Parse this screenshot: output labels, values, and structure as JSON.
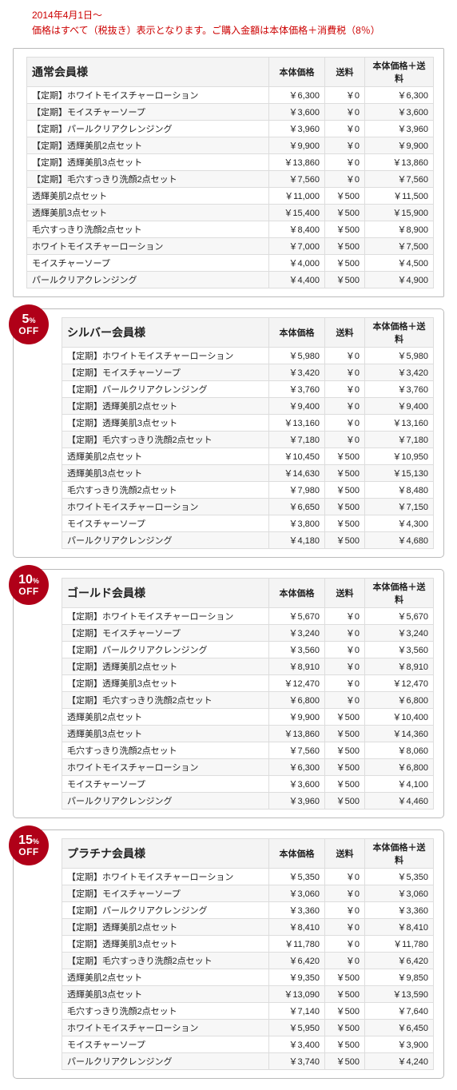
{
  "notice_line1": "2014年4月1日～",
  "notice_line2": "価格はすべて（税抜き）表示となります。ご購入金額は本体価格＋消費税（8％）",
  "headers": {
    "price": "本体価格",
    "shipping": "送料",
    "total": "本体価格＋送料"
  },
  "badge_off": "OFF",
  "tiers": [
    {
      "id": "normal",
      "title": "通常会員様",
      "badge": null,
      "rows": [
        {
          "name": "【定期】ホワイトモイスチャーローション",
          "price": "￥6,300",
          "ship": "￥0",
          "total": "￥6,300"
        },
        {
          "name": "【定期】モイスチャーソープ",
          "price": "￥3,600",
          "ship": "￥0",
          "total": "￥3,600"
        },
        {
          "name": "【定期】パールクリアクレンジング",
          "price": "￥3,960",
          "ship": "￥0",
          "total": "￥3,960"
        },
        {
          "name": "【定期】透輝美肌2点セット",
          "price": "￥9,900",
          "ship": "￥0",
          "total": "￥9,900"
        },
        {
          "name": "【定期】透輝美肌3点セット",
          "price": "￥13,860",
          "ship": "￥0",
          "total": "￥13,860"
        },
        {
          "name": "【定期】毛穴すっきり洗顔2点セット",
          "price": "￥7,560",
          "ship": "￥0",
          "total": "￥7,560"
        },
        {
          "name": "透輝美肌2点セット",
          "price": "￥11,000",
          "ship": "￥500",
          "total": "￥11,500"
        },
        {
          "name": "透輝美肌3点セット",
          "price": "￥15,400",
          "ship": "￥500",
          "total": "￥15,900"
        },
        {
          "name": "毛穴すっきり洗顔2点セット",
          "price": "￥8,400",
          "ship": "￥500",
          "total": "￥8,900"
        },
        {
          "name": "ホワイトモイスチャーローション",
          "price": "￥7,000",
          "ship": "￥500",
          "total": "￥7,500"
        },
        {
          "name": "モイスチャーソープ",
          "price": "￥4,000",
          "ship": "￥500",
          "total": "￥4,500"
        },
        {
          "name": "パールクリアクレンジング",
          "price": "￥4,400",
          "ship": "￥500",
          "total": "￥4,900"
        }
      ]
    },
    {
      "id": "silver",
      "title": "シルバー会員様",
      "badge": "5",
      "rows": [
        {
          "name": "【定期】ホワイトモイスチャーローション",
          "price": "￥5,980",
          "ship": "￥0",
          "total": "￥5,980"
        },
        {
          "name": "【定期】モイスチャーソープ",
          "price": "￥3,420",
          "ship": "￥0",
          "total": "￥3,420"
        },
        {
          "name": "【定期】パールクリアクレンジング",
          "price": "￥3,760",
          "ship": "￥0",
          "total": "￥3,760"
        },
        {
          "name": "【定期】透輝美肌2点セット",
          "price": "￥9,400",
          "ship": "￥0",
          "total": "￥9,400"
        },
        {
          "name": "【定期】透輝美肌3点セット",
          "price": "￥13,160",
          "ship": "￥0",
          "total": "￥13,160"
        },
        {
          "name": "【定期】毛穴すっきり洗顔2点セット",
          "price": "￥7,180",
          "ship": "￥0",
          "total": "￥7,180"
        },
        {
          "name": "透輝美肌2点セット",
          "price": "￥10,450",
          "ship": "￥500",
          "total": "￥10,950"
        },
        {
          "name": "透輝美肌3点セット",
          "price": "￥14,630",
          "ship": "￥500",
          "total": "￥15,130"
        },
        {
          "name": "毛穴すっきり洗顔2点セット",
          "price": "￥7,980",
          "ship": "￥500",
          "total": "￥8,480"
        },
        {
          "name": "ホワイトモイスチャーローション",
          "price": "￥6,650",
          "ship": "￥500",
          "total": "￥7,150"
        },
        {
          "name": "モイスチャーソープ",
          "price": "￥3,800",
          "ship": "￥500",
          "total": "￥4,300"
        },
        {
          "name": "パールクリアクレンジング",
          "price": "￥4,180",
          "ship": "￥500",
          "total": "￥4,680"
        }
      ]
    },
    {
      "id": "gold",
      "title": "ゴールド会員様",
      "badge": "10",
      "rows": [
        {
          "name": "【定期】ホワイトモイスチャーローション",
          "price": "￥5,670",
          "ship": "￥0",
          "total": "￥5,670"
        },
        {
          "name": "【定期】モイスチャーソープ",
          "price": "￥3,240",
          "ship": "￥0",
          "total": "￥3,240"
        },
        {
          "name": "【定期】パールクリアクレンジング",
          "price": "￥3,560",
          "ship": "￥0",
          "total": "￥3,560"
        },
        {
          "name": "【定期】透輝美肌2点セット",
          "price": "￥8,910",
          "ship": "￥0",
          "total": "￥8,910"
        },
        {
          "name": "【定期】透輝美肌3点セット",
          "price": "￥12,470",
          "ship": "￥0",
          "total": "￥12,470"
        },
        {
          "name": "【定期】毛穴すっきり洗顔2点セット",
          "price": "￥6,800",
          "ship": "￥0",
          "total": "￥6,800"
        },
        {
          "name": "透輝美肌2点セット",
          "price": "￥9,900",
          "ship": "￥500",
          "total": "￥10,400"
        },
        {
          "name": "透輝美肌3点セット",
          "price": "￥13,860",
          "ship": "￥500",
          "total": "￥14,360"
        },
        {
          "name": "毛穴すっきり洗顔2点セット",
          "price": "￥7,560",
          "ship": "￥500",
          "total": "￥8,060"
        },
        {
          "name": "ホワイトモイスチャーローション",
          "price": "￥6,300",
          "ship": "￥500",
          "total": "￥6,800"
        },
        {
          "name": "モイスチャーソープ",
          "price": "￥3,600",
          "ship": "￥500",
          "total": "￥4,100"
        },
        {
          "name": "パールクリアクレンジング",
          "price": "￥3,960",
          "ship": "￥500",
          "total": "￥4,460"
        }
      ]
    },
    {
      "id": "platinum",
      "title": "プラチナ会員様",
      "badge": "15",
      "rows": [
        {
          "name": "【定期】ホワイトモイスチャーローション",
          "price": "￥5,350",
          "ship": "￥0",
          "total": "￥5,350"
        },
        {
          "name": "【定期】モイスチャーソープ",
          "price": "￥3,060",
          "ship": "￥0",
          "total": "￥3,060"
        },
        {
          "name": "【定期】パールクリアクレンジング",
          "price": "￥3,360",
          "ship": "￥0",
          "total": "￥3,360"
        },
        {
          "name": "【定期】透輝美肌2点セット",
          "price": "￥8,410",
          "ship": "￥0",
          "total": "￥8,410"
        },
        {
          "name": "【定期】透輝美肌3点セット",
          "price": "￥11,780",
          "ship": "￥0",
          "total": "￥11,780"
        },
        {
          "name": "【定期】毛穴すっきり洗顔2点セット",
          "price": "￥6,420",
          "ship": "￥0",
          "total": "￥6,420"
        },
        {
          "name": "透輝美肌2点セット",
          "price": "￥9,350",
          "ship": "￥500",
          "total": "￥9,850"
        },
        {
          "name": "透輝美肌3点セット",
          "price": "￥13,090",
          "ship": "￥500",
          "total": "￥13,590"
        },
        {
          "name": "毛穴すっきり洗顔2点セット",
          "price": "￥7,140",
          "ship": "￥500",
          "total": "￥7,640"
        },
        {
          "name": "ホワイトモイスチャーローション",
          "price": "￥5,950",
          "ship": "￥500",
          "total": "￥6,450"
        },
        {
          "name": "モイスチャーソープ",
          "price": "￥3,400",
          "ship": "￥500",
          "total": "￥3,900"
        },
        {
          "name": "パールクリアクレンジング",
          "price": "￥3,740",
          "ship": "￥500",
          "total": "￥4,240"
        }
      ]
    }
  ]
}
